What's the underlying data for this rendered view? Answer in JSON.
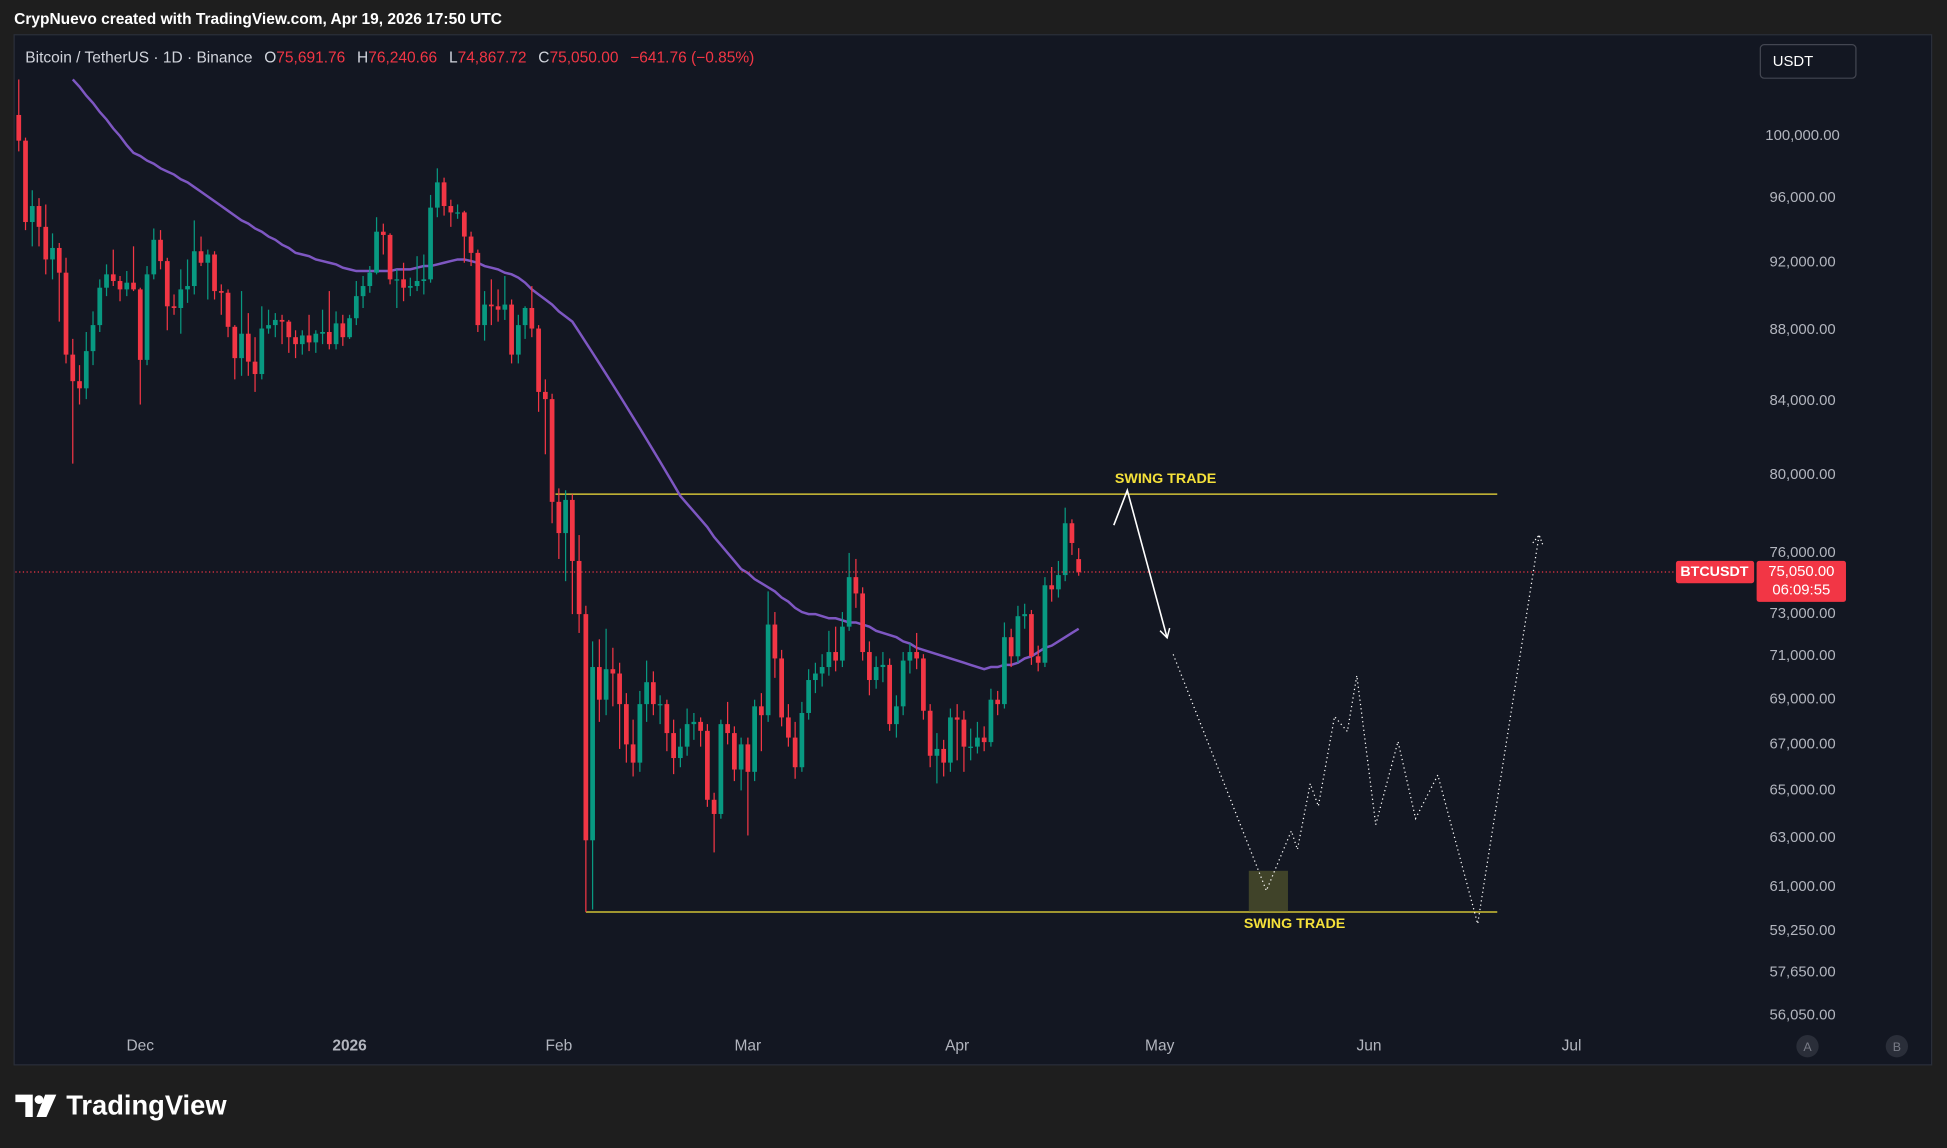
{
  "header": {
    "credit": "CrypNuevo created with TradingView.com, Apr 19, 2026 17:50 UTC",
    "symbol": "Bitcoin / TetherUS · 1D · Binance",
    "ohlc": [
      {
        "key": "O",
        "value": "75,691.76"
      },
      {
        "key": "H",
        "value": "76,240.66"
      },
      {
        "key": "L",
        "value": "74,867.72"
      },
      {
        "key": "C",
        "value": "75,050.00"
      }
    ],
    "change": "−641.76 (−0.85%)",
    "currency": "USDT"
  },
  "footer": {
    "logo": "TradingView",
    "scale_buttons": [
      "A",
      "B"
    ]
  },
  "chart_data": {
    "type": "candlestick",
    "log_scale": true,
    "grid": false,
    "up_color": "#089981",
    "down_color": "#f23645",
    "xlim": [
      -18.5,
      238.5
    ],
    "xticks": [
      {
        "value": 0,
        "label": "Dec"
      },
      {
        "value": 31,
        "label": "2026"
      },
      {
        "value": 62,
        "label": "Feb"
      },
      {
        "value": 90,
        "label": "Mar"
      },
      {
        "value": 121,
        "label": "Apr"
      },
      {
        "value": 151,
        "label": "May"
      },
      {
        "value": 182,
        "label": "Jun"
      },
      {
        "value": 212,
        "label": "Jul"
      }
    ],
    "ylim": [
      54300,
      106900
    ],
    "yticks": [
      {
        "value": 100000,
        "label": "100,000.00"
      },
      {
        "value": 96000,
        "label": "96,000.00"
      },
      {
        "value": 92000,
        "label": "92,000.00"
      },
      {
        "value": 88000,
        "label": "88,000.00"
      },
      {
        "value": 84000,
        "label": "84,000.00"
      },
      {
        "value": 80000,
        "label": "80,000.00"
      },
      {
        "value": 76000,
        "label": "76,000.00"
      },
      {
        "value": 73000,
        "label": "73,000.00"
      },
      {
        "value": 71000,
        "label": "71,000.00"
      },
      {
        "value": 69000,
        "label": "69,000.00"
      },
      {
        "value": 67000,
        "label": "67,000.00"
      },
      {
        "value": 65000,
        "label": "65,000.00"
      },
      {
        "value": 63000,
        "label": "63,000.00"
      },
      {
        "value": 61000,
        "label": "61,000.00"
      },
      {
        "value": 59250,
        "label": "59,250.00"
      },
      {
        "value": 57650,
        "label": "57,650.00"
      },
      {
        "value": 56050,
        "label": "56,050.00"
      }
    ],
    "last_price": {
      "value": 75050,
      "label": "75,050.00",
      "symbol": "BTCUSDT",
      "countdown": "06:09:55",
      "color": "#f23645"
    },
    "candles": [
      [
        101400,
        103800,
        99000,
        99700
      ],
      [
        99700,
        99900,
        94000,
        94500
      ],
      [
        94500,
        96500,
        93000,
        95500
      ],
      [
        95500,
        96000,
        93000,
        94200
      ],
      [
        94200,
        95600,
        91300,
        92200
      ],
      [
        92200,
        93800,
        91000,
        92900
      ],
      [
        92900,
        93200,
        88500,
        91400
      ],
      [
        91400,
        92300,
        86100,
        86600
      ],
      [
        86600,
        87500,
        80600,
        85100
      ],
      [
        85100,
        86000,
        83800,
        84700
      ],
      [
        84700,
        87900,
        84100,
        86800
      ],
      [
        86800,
        89100,
        86000,
        88300
      ],
      [
        88300,
        91000,
        87900,
        90500
      ],
      [
        90500,
        91900,
        90000,
        91300
      ],
      [
        91300,
        92800,
        90600,
        90900
      ],
      [
        90900,
        91200,
        89700,
        90400
      ],
      [
        90400,
        91500,
        90000,
        90800
      ],
      [
        90800,
        93000,
        90300,
        90400
      ],
      [
        90400,
        90500,
        83800,
        86300
      ],
      [
        86300,
        91800,
        86000,
        91300
      ],
      [
        91300,
        94100,
        91000,
        93400
      ],
      [
        93400,
        94000,
        91600,
        92100
      ],
      [
        92100,
        92300,
        88000,
        89400
      ],
      [
        89400,
        90100,
        88900,
        89300
      ],
      [
        89300,
        91600,
        87800,
        90400
      ],
      [
        90400,
        92200,
        89600,
        90600
      ],
      [
        90600,
        94600,
        90100,
        92700
      ],
      [
        92700,
        93600,
        91800,
        92000
      ],
      [
        92000,
        92800,
        89800,
        92500
      ],
      [
        92500,
        92700,
        89800,
        90300
      ],
      [
        90300,
        90700,
        88900,
        90200
      ],
      [
        90200,
        90400,
        87600,
        88200
      ],
      [
        88200,
        88300,
        85200,
        86400
      ],
      [
        86400,
        90300,
        85400,
        87800
      ],
      [
        87800,
        89000,
        85400,
        86200
      ],
      [
        86200,
        87600,
        84500,
        85500
      ],
      [
        85500,
        89400,
        85200,
        88100
      ],
      [
        88100,
        89200,
        87800,
        88300
      ],
      [
        88300,
        89000,
        87600,
        88600
      ],
      [
        88600,
        88900,
        87200,
        88500
      ],
      [
        88500,
        88600,
        86700,
        87600
      ],
      [
        87600,
        88000,
        86400,
        87200
      ],
      [
        87200,
        88000,
        86600,
        87700
      ],
      [
        87700,
        88900,
        86800,
        87300
      ],
      [
        87300,
        88000,
        86700,
        87800
      ],
      [
        87800,
        89200,
        87200,
        87900
      ],
      [
        87900,
        90300,
        86900,
        87200
      ],
      [
        87200,
        89100,
        86900,
        88400
      ],
      [
        88400,
        88900,
        87100,
        87600
      ],
      [
        87600,
        88900,
        87500,
        88700
      ],
      [
        88700,
        90900,
        88300,
        90000
      ],
      [
        90000,
        91200,
        89300,
        90600
      ],
      [
        90600,
        91800,
        90200,
        91400
      ],
      [
        91400,
        94800,
        91300,
        93900
      ],
      [
        93900,
        94400,
        92500,
        93700
      ],
      [
        93700,
        93800,
        90700,
        91000
      ],
      [
        91000,
        91600,
        89300,
        91000
      ],
      [
        91000,
        92000,
        89700,
        90500
      ],
      [
        90500,
        91100,
        90000,
        90600
      ],
      [
        90600,
        92400,
        90300,
        90900
      ],
      [
        90900,
        92500,
        90100,
        91000
      ],
      [
        91000,
        96200,
        90800,
        95400
      ],
      [
        95400,
        97900,
        94800,
        97000
      ],
      [
        97000,
        97300,
        94900,
        95500
      ],
      [
        95500,
        95900,
        94200,
        95100
      ],
      [
        95100,
        95600,
        94700,
        95100
      ],
      [
        95100,
        95200,
        92000,
        93600
      ],
      [
        93600,
        93900,
        91800,
        92600
      ],
      [
        92600,
        92800,
        87900,
        88300
      ],
      [
        88300,
        90300,
        87400,
        89500
      ],
      [
        89500,
        91000,
        88300,
        89400
      ],
      [
        89400,
        90400,
        88500,
        89200
      ],
      [
        89200,
        91200,
        88600,
        89500
      ],
      [
        89500,
        89800,
        86100,
        86600
      ],
      [
        86600,
        88900,
        86100,
        88300
      ],
      [
        88300,
        89400,
        87500,
        89300
      ],
      [
        89300,
        90600,
        87600,
        88100
      ],
      [
        88100,
        88300,
        83400,
        84500
      ],
      [
        84500,
        85200,
        81100,
        84100
      ],
      [
        84100,
        84400,
        77500,
        78600
      ],
      [
        78600,
        79300,
        75700,
        77000
      ],
      [
        77000,
        79200,
        74600,
        78700
      ],
      [
        78700,
        79000,
        73000,
        75600
      ],
      [
        75600,
        76900,
        72100,
        73000
      ],
      [
        73000,
        73400,
        60000,
        62900
      ],
      [
        62900,
        71700,
        60100,
        70500
      ],
      [
        70500,
        71800,
        68000,
        69000
      ],
      [
        69000,
        72300,
        68300,
        70400
      ],
      [
        70400,
        71400,
        68700,
        70200
      ],
      [
        70200,
        70700,
        66800,
        68800
      ],
      [
        68800,
        69300,
        66200,
        67000
      ],
      [
        67000,
        68100,
        65600,
        66200
      ],
      [
        66200,
        69400,
        65800,
        68800
      ],
      [
        68800,
        70800,
        68000,
        69800
      ],
      [
        69800,
        70300,
        68300,
        68800
      ],
      [
        68800,
        69200,
        67900,
        68800
      ],
      [
        68800,
        69000,
        66700,
        67500
      ],
      [
        67500,
        68100,
        65700,
        66400
      ],
      [
        66400,
        67700,
        66000,
        66900
      ],
      [
        66900,
        68600,
        66500,
        67900
      ],
      [
        67900,
        68400,
        67200,
        68000
      ],
      [
        68000,
        68200,
        66900,
        67600
      ],
      [
        67600,
        67900,
        64300,
        64600
      ],
      [
        64600,
        64900,
        62400,
        64000
      ],
      [
        64000,
        68100,
        63800,
        67900
      ],
      [
        67900,
        68900,
        67000,
        67500
      ],
      [
        67500,
        67800,
        65400,
        65900
      ],
      [
        65900,
        67300,
        65000,
        67000
      ],
      [
        67000,
        67300,
        63100,
        65800
      ],
      [
        65800,
        69000,
        65400,
        68700
      ],
      [
        68700,
        69300,
        66700,
        68300
      ],
      [
        68300,
        74100,
        68000,
        72500
      ],
      [
        72500,
        73100,
        70000,
        70900
      ],
      [
        70900,
        71300,
        67800,
        68200
      ],
      [
        68200,
        68800,
        66900,
        67300
      ],
      [
        67300,
        68000,
        65500,
        66000
      ],
      [
        66000,
        68900,
        65800,
        68400
      ],
      [
        68400,
        70400,
        68100,
        69900
      ],
      [
        69900,
        70700,
        69300,
        70200
      ],
      [
        70200,
        71100,
        69600,
        70500
      ],
      [
        70500,
        72200,
        70100,
        71200
      ],
      [
        71200,
        72400,
        70300,
        70800
      ],
      [
        70800,
        73100,
        70500,
        72400
      ],
      [
        72400,
        76000,
        72200,
        74800
      ],
      [
        74800,
        75700,
        73300,
        74000
      ],
      [
        74000,
        74300,
        70800,
        71200
      ],
      [
        71200,
        71700,
        69200,
        69900
      ],
      [
        69900,
        71000,
        69500,
        70500
      ],
      [
        70500,
        71200,
        69800,
        70600
      ],
      [
        70600,
        70900,
        67600,
        67900
      ],
      [
        67900,
        69200,
        67300,
        68700
      ],
      [
        68700,
        71200,
        68300,
        70800
      ],
      [
        70800,
        71600,
        70200,
        71200
      ],
      [
        71200,
        72100,
        70400,
        70900
      ],
      [
        70900,
        71100,
        68100,
        68500
      ],
      [
        68500,
        68800,
        66000,
        66500
      ],
      [
        66500,
        67500,
        65300,
        66800
      ],
      [
        66800,
        67200,
        65600,
        66200
      ],
      [
        66200,
        68600,
        65800,
        68200
      ],
      [
        68200,
        68800,
        66300,
        68100
      ],
      [
        68100,
        68500,
        65800,
        66900
      ],
      [
        66900,
        67700,
        66300,
        66900
      ],
      [
        66900,
        68000,
        66600,
        67300
      ],
      [
        67300,
        67800,
        66700,
        67100
      ],
      [
        67100,
        69500,
        66900,
        69000
      ],
      [
        69000,
        69400,
        68300,
        68800
      ],
      [
        68800,
        72600,
        68600,
        71900
      ],
      [
        71900,
        72300,
        70500,
        71000
      ],
      [
        71000,
        73400,
        70700,
        72900
      ],
      [
        72900,
        73500,
        72300,
        73000
      ],
      [
        73000,
        73200,
        70600,
        71000
      ],
      [
        71000,
        71500,
        70300,
        70700
      ],
      [
        70700,
        74800,
        70500,
        74400
      ],
      [
        74400,
        75300,
        73600,
        74200
      ],
      [
        74200,
        75600,
        73800,
        74900
      ],
      [
        74900,
        78300,
        74600,
        77500
      ],
      [
        77500,
        77700,
        75900,
        76500
      ],
      [
        75691.76,
        76240.66,
        74867.72,
        75050
      ]
    ],
    "ma": {
      "color": "#7e57c2",
      "values": [
        null,
        null,
        null,
        null,
        null,
        null,
        null,
        null,
        103800,
        103300,
        102700,
        102200,
        101600,
        101100,
        100500,
        100000,
        99400,
        98900,
        98700,
        98400,
        98200,
        97900,
        97700,
        97500,
        97200,
        97000,
        96700,
        96400,
        96100,
        95800,
        95500,
        95200,
        94900,
        94600,
        94400,
        94100,
        93900,
        93600,
        93400,
        93100,
        92900,
        92600,
        92500,
        92400,
        92200,
        92100,
        92000,
        91900,
        91700,
        91600,
        91500,
        91500,
        91500,
        91500,
        91500,
        91500,
        91600,
        91600,
        91600,
        91700,
        91800,
        91800,
        91900,
        92000,
        92100,
        92200,
        92200,
        92100,
        92000,
        91800,
        91700,
        91600,
        91400,
        91300,
        91100,
        90800,
        90400,
        90100,
        89800,
        89500,
        89100,
        88800,
        88500,
        87900,
        87300,
        86700,
        86100,
        85500,
        84900,
        84300,
        83700,
        83100,
        82500,
        81900,
        81300,
        80700,
        80100,
        79500,
        78900,
        78500,
        78100,
        77700,
        77300,
        76800,
        76400,
        76000,
        75600,
        75200,
        75000,
        74700,
        74500,
        74300,
        74100,
        73800,
        73600,
        73300,
        73100,
        73000,
        73000,
        72900,
        72800,
        72800,
        72700,
        72600,
        72600,
        72500,
        72400,
        72200,
        72100,
        72000,
        71900,
        71700,
        71600,
        71400,
        71300,
        71200,
        71100,
        71000,
        70900,
        70800,
        70700,
        70600,
        70500,
        70400,
        70500,
        70500,
        70600,
        70600,
        70700,
        70900,
        71000,
        71200,
        71400,
        71500,
        71700,
        71900,
        72100,
        72300
      ]
    },
    "annotations": {
      "levels": [
        {
          "price": 79000,
          "from": 61.5,
          "to": 201,
          "label": "SWING TRADE",
          "color": "#f5e13a"
        },
        {
          "price": 60000,
          "from": 66,
          "to": 201,
          "label": "SWING TRADE",
          "color": "#f5e13a"
        }
      ],
      "arrow": {
        "x": [
          144.2,
          146.2,
          152.1
        ],
        "y": [
          77400,
          79200,
          71870
        ]
      },
      "projection": {
        "x": [
          153.0,
          166.8,
          170.5,
          171.4,
          173.3,
          174.5,
          176.9,
          178.8,
          180.2,
          183.0,
          186.3,
          188.9,
          192.2,
          198.1,
          207.2
        ],
        "y": [
          71090,
          60850,
          63290,
          62520,
          65290,
          64330,
          68240,
          67570,
          70110,
          63550,
          67130,
          63810,
          65660,
          59530,
          76900
        ]
      },
      "box": {
        "x": [
          164.2,
          170.0
        ],
        "y": [
          60000,
          61650
        ]
      }
    }
  }
}
